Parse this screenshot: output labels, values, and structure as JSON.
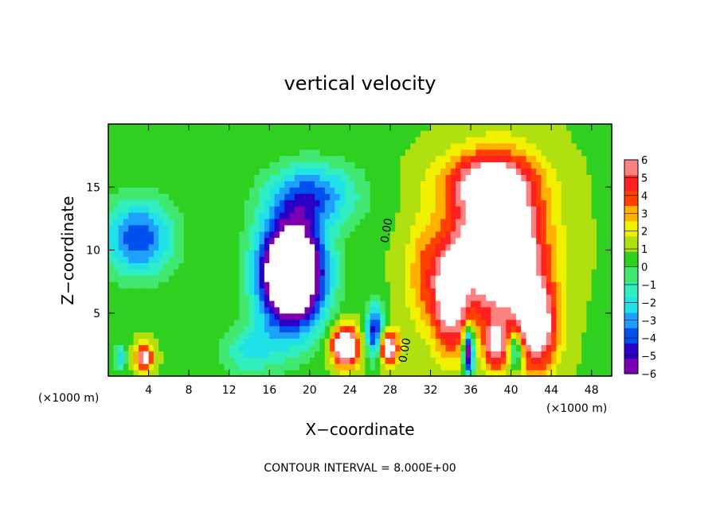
{
  "chart_data": {
    "type": "heatmap",
    "title": "vertical velocity",
    "xlabel": "X−coordinate",
    "ylabel": "Z−coordinate",
    "x_unit": "(×1000 m)",
    "y_unit": "(×1000 m)",
    "xlim": [
      0,
      50
    ],
    "ylim": [
      0,
      20
    ],
    "x_ticks": [
      4,
      8,
      12,
      16,
      20,
      24,
      28,
      32,
      36,
      40,
      44,
      48
    ],
    "y_ticks": [
      5,
      10,
      15
    ],
    "colorbar": {
      "min": -6,
      "max": 6,
      "ticks": [
        {
          "value": 6,
          "label": "6"
        },
        {
          "value": 5,
          "label": "5"
        },
        {
          "value": 4,
          "label": "4"
        },
        {
          "value": 3,
          "label": "3"
        },
        {
          "value": 2,
          "label": "2"
        },
        {
          "value": 1,
          "label": "1"
        },
        {
          "value": 0,
          "label": "0"
        },
        {
          "value": -1,
          "label": "−1"
        },
        {
          "value": -2,
          "label": "−2"
        },
        {
          "value": -3,
          "label": "−3"
        },
        {
          "value": -4,
          "label": "−4"
        },
        {
          "value": -5,
          "label": "−5"
        },
        {
          "value": -6,
          "label": "−6"
        }
      ],
      "colors": [
        "#7a00b0",
        "#2a00c8",
        "#0050f0",
        "#1fa0ff",
        "#20e0e8",
        "#30eec0",
        "#40e870",
        "#30d020",
        "#b0e010",
        "#f0f000",
        "#ffb000",
        "#ff4000",
        "#ff2020",
        "#ff8080"
      ]
    },
    "contour_interval_text": "CONTOUR INTERVAL = 8.000E+00",
    "contour_labels": [
      {
        "text": "0.00",
        "x": 28.0,
        "y": 11.5
      },
      {
        "text": "0.00",
        "x": 29.8,
        "y": 2.0
      }
    ],
    "features": [
      {
        "kind": "updraft",
        "x_center": 38.5,
        "z_center": 9.0,
        "peak": 8
      },
      {
        "kind": "updraft",
        "x_center": 33.5,
        "z_center": 6.0,
        "peak": 8
      },
      {
        "kind": "updraft",
        "x_center": 23.5,
        "z_center": 2.5,
        "peak": 8
      },
      {
        "kind": "updraft",
        "x_center": 27.5,
        "z_center": 2.3,
        "peak": 7
      },
      {
        "kind": "updraft",
        "x_center": 3.5,
        "z_center": 1.5,
        "peak": 6
      },
      {
        "kind": "downdraft",
        "x_center": 18.0,
        "z_center": 8.0,
        "peak": -8
      },
      {
        "kind": "downdraft",
        "x_center": 2.5,
        "z_center": 11.0,
        "peak": -5
      },
      {
        "kind": "downdraft",
        "x_center": 27.0,
        "z_center": 3.0,
        "peak": -5
      },
      {
        "kind": "downdraft",
        "x_center": 35.8,
        "z_center": 2.0,
        "peak": -6
      },
      {
        "kind": "downdraft",
        "x_center": 40.5,
        "z_center": 2.0,
        "peak": -3
      }
    ],
    "grid": false
  }
}
